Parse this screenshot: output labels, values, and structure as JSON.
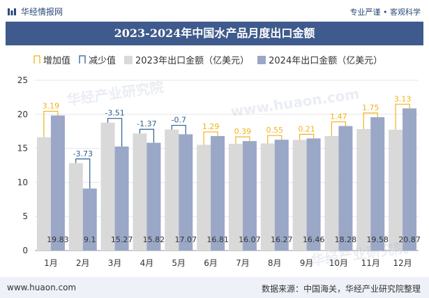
{
  "header": {
    "logo_text": "华经情报网",
    "slogan": "专业严谨 • 客观科学"
  },
  "watermark_text": "华经产业研究院",
  "footer": {
    "url": "www.huaon.com",
    "source": "数据来源：中国海关，华经产业研究院整理"
  },
  "colors": {
    "title_bg": "#3f5a8c",
    "bar_2023": "#d9d9d9",
    "bar_2024": "#9aa7c6",
    "increase": "#f2b21b",
    "decrease": "#2f5f8f"
  },
  "chart_data": {
    "type": "bar",
    "title": "2023-2024年中国水产品月度出口金额",
    "categories": [
      "1月",
      "2月",
      "3月",
      "4月",
      "5月",
      "6月",
      "7月",
      "8月",
      "9月",
      "10月",
      "11月",
      "12月"
    ],
    "series": [
      {
        "name": "2023年出口金额（亿美元）",
        "values": [
          16.64,
          12.83,
          18.78,
          17.19,
          17.77,
          15.52,
          15.68,
          15.72,
          16.25,
          16.81,
          17.83,
          17.74
        ]
      },
      {
        "name": "2024年出口金额（亿美元）",
        "values": [
          19.83,
          9.1,
          15.27,
          15.82,
          17.07,
          16.81,
          16.07,
          16.27,
          16.46,
          18.28,
          19.58,
          20.87
        ]
      }
    ],
    "change_series": [
      {
        "name": "增加值",
        "values": [
          3.19,
          null,
          null,
          null,
          null,
          1.29,
          0.39,
          0.55,
          0.21,
          1.47,
          1.75,
          3.13
        ]
      },
      {
        "name": "减少值",
        "values": [
          null,
          -3.73,
          -3.51,
          -1.37,
          -0.7,
          null,
          null,
          null,
          null,
          null,
          null,
          null
        ]
      }
    ],
    "ylim": [
      0,
      25
    ],
    "yticks": [
      0,
      5,
      10,
      15,
      20,
      25
    ],
    "grid": true,
    "legend_position": "top-left"
  }
}
